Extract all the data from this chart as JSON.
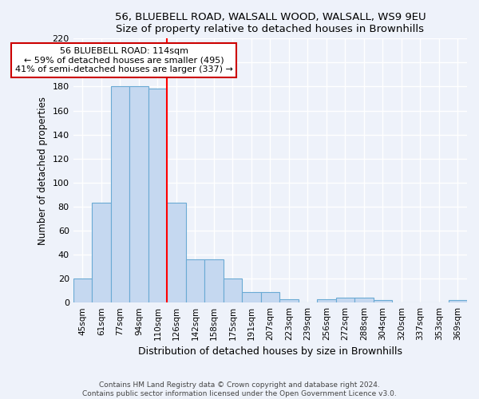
{
  "title_line1": "56, BLUEBELL ROAD, WALSALL WOOD, WALSALL, WS9 9EU",
  "title_line2": "Size of property relative to detached houses in Brownhills",
  "xlabel": "Distribution of detached houses by size in Brownhills",
  "ylabel": "Number of detached properties",
  "categories": [
    "45sqm",
    "61sqm",
    "77sqm",
    "94sqm",
    "110sqm",
    "126sqm",
    "142sqm",
    "158sqm",
    "175sqm",
    "191sqm",
    "207sqm",
    "223sqm",
    "239sqm",
    "256sqm",
    "272sqm",
    "288sqm",
    "304sqm",
    "320sqm",
    "337sqm",
    "353sqm",
    "369sqm"
  ],
  "values": [
    20,
    83,
    180,
    180,
    178,
    83,
    36,
    36,
    20,
    9,
    9,
    3,
    0,
    3,
    4,
    4,
    2,
    0,
    0,
    0,
    2
  ],
  "bar_color": "#c5d8f0",
  "bar_edge_color": "#6aaad4",
  "red_line_x": 4.5,
  "annotation_line1": "56 BLUEBELL ROAD: 114sqm",
  "annotation_line2": "← 59% of detached houses are smaller (495)",
  "annotation_line3": "41% of semi-detached houses are larger (337) →",
  "annotation_box_color": "#ffffff",
  "annotation_box_edge": "#cc0000",
  "ylim": [
    0,
    220
  ],
  "yticks": [
    0,
    20,
    40,
    60,
    80,
    100,
    120,
    140,
    160,
    180,
    200,
    220
  ],
  "footer": "Contains HM Land Registry data © Crown copyright and database right 2024.\nContains public sector information licensed under the Open Government Licence v3.0.",
  "background_color": "#eef2fa",
  "grid_color": "#ffffff"
}
